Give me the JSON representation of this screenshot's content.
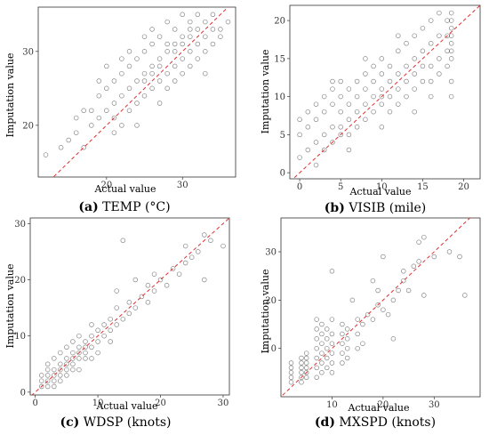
{
  "chart_data": [
    {
      "type": "scatter",
      "panel": "a",
      "caption_tag": "(a)",
      "caption_text": " TEMP (°C)",
      "xlabel": "Actual value",
      "ylabel": "Imputation value",
      "xlim": [
        11,
        37
      ],
      "ylim": [
        13,
        36
      ],
      "xticks": [
        20,
        30
      ],
      "yticks": [
        20,
        30
      ],
      "reference_line": "y = x",
      "points": [
        [
          12,
          16
        ],
        [
          14,
          17
        ],
        [
          15,
          18
        ],
        [
          16,
          19
        ],
        [
          17,
          17
        ],
        [
          18,
          20
        ],
        [
          18,
          22
        ],
        [
          19,
          21
        ],
        [
          19,
          24
        ],
        [
          20,
          22
        ],
        [
          20,
          25
        ],
        [
          21,
          21
        ],
        [
          21,
          23
        ],
        [
          21,
          26
        ],
        [
          22,
          24
        ],
        [
          22,
          27
        ],
        [
          22,
          20
        ],
        [
          23,
          25
        ],
        [
          23,
          28
        ],
        [
          23,
          22
        ],
        [
          24,
          26
        ],
        [
          24,
          23
        ],
        [
          24,
          29
        ],
        [
          25,
          27
        ],
        [
          25,
          24
        ],
        [
          25,
          30
        ],
        [
          25,
          26
        ],
        [
          26,
          28
        ],
        [
          26,
          25
        ],
        [
          26,
          31
        ],
        [
          26,
          27
        ],
        [
          27,
          29
        ],
        [
          27,
          26
        ],
        [
          27,
          32
        ],
        [
          27,
          28
        ],
        [
          28,
          30
        ],
        [
          28,
          27
        ],
        [
          28,
          25
        ],
        [
          28,
          31
        ],
        [
          29,
          31
        ],
        [
          29,
          28
        ],
        [
          29,
          33
        ],
        [
          29,
          30
        ],
        [
          30,
          32
        ],
        [
          30,
          29
        ],
        [
          30,
          27
        ],
        [
          30,
          31
        ],
        [
          31,
          33
        ],
        [
          31,
          30
        ],
        [
          31,
          34
        ],
        [
          31,
          32
        ],
        [
          32,
          31
        ],
        [
          32,
          33
        ],
        [
          32,
          35
        ],
        [
          32,
          29
        ],
        [
          33,
          32
        ],
        [
          33,
          34
        ],
        [
          33,
          30
        ],
        [
          34,
          33
        ],
        [
          34,
          31
        ],
        [
          34,
          35
        ],
        [
          35,
          33
        ],
        [
          35,
          32
        ],
        [
          36,
          34
        ],
        [
          22,
          29
        ],
        [
          20,
          28
        ],
        [
          24,
          20
        ],
        [
          26,
          33
        ],
        [
          29,
          26
        ],
        [
          31,
          28
        ],
        [
          33,
          27
        ],
        [
          19,
          26
        ],
        [
          27,
          23
        ],
        [
          23,
          30
        ],
        [
          25,
          32
        ],
        [
          28,
          34
        ],
        [
          30,
          35
        ],
        [
          21,
          19
        ],
        [
          17,
          22
        ],
        [
          16,
          21
        ]
      ]
    },
    {
      "type": "scatter",
      "panel": "b",
      "caption_tag": "(b)",
      "caption_text": " VISIB (mile)",
      "xlabel": "Actual value",
      "ylabel": "Imputation value",
      "xlim": [
        -1.2,
        22
      ],
      "ylim": [
        -0.8,
        22
      ],
      "xticks": [
        0,
        5,
        10,
        15,
        20
      ],
      "yticks": [
        0,
        5,
        10,
        15,
        20
      ],
      "reference_line": "y = x",
      "points": [
        [
          0,
          2
        ],
        [
          0,
          5
        ],
        [
          0,
          7
        ],
        [
          1,
          3
        ],
        [
          1,
          6
        ],
        [
          1,
          8
        ],
        [
          2,
          4
        ],
        [
          2,
          7
        ],
        [
          2,
          9
        ],
        [
          3,
          3
        ],
        [
          3,
          5
        ],
        [
          3,
          8
        ],
        [
          3,
          10
        ],
        [
          4,
          4
        ],
        [
          4,
          6
        ],
        [
          4,
          9
        ],
        [
          4,
          11
        ],
        [
          5,
          5
        ],
        [
          5,
          6
        ],
        [
          5,
          8
        ],
        [
          5,
          10
        ],
        [
          5,
          12
        ],
        [
          6,
          5
        ],
        [
          6,
          7
        ],
        [
          6,
          9
        ],
        [
          6,
          11
        ],
        [
          7,
          6
        ],
        [
          7,
          8
        ],
        [
          7,
          10
        ],
        [
          7,
          12
        ],
        [
          8,
          7
        ],
        [
          8,
          9
        ],
        [
          8,
          11
        ],
        [
          8,
          13
        ],
        [
          9,
          8
        ],
        [
          9,
          10
        ],
        [
          9,
          12
        ],
        [
          9,
          14
        ],
        [
          10,
          9
        ],
        [
          10,
          10
        ],
        [
          10,
          11
        ],
        [
          10,
          13
        ],
        [
          10,
          15
        ],
        [
          11,
          8
        ],
        [
          11,
          10
        ],
        [
          11,
          12
        ],
        [
          11,
          14
        ],
        [
          12,
          9
        ],
        [
          12,
          11
        ],
        [
          12,
          13
        ],
        [
          12,
          16
        ],
        [
          13,
          10
        ],
        [
          13,
          12
        ],
        [
          13,
          14
        ],
        [
          13,
          17
        ],
        [
          14,
          11
        ],
        [
          14,
          13
        ],
        [
          14,
          15
        ],
        [
          14,
          18
        ],
        [
          15,
          12
        ],
        [
          15,
          14
        ],
        [
          15,
          16
        ],
        [
          15,
          19
        ],
        [
          16,
          12
        ],
        [
          16,
          14
        ],
        [
          16,
          17
        ],
        [
          16,
          20
        ],
        [
          17,
          13
        ],
        [
          17,
          15
        ],
        [
          17,
          18
        ],
        [
          17,
          21
        ],
        [
          18,
          14
        ],
        [
          18,
          16
        ],
        [
          18,
          18
        ],
        [
          18,
          20
        ],
        [
          18.5,
          16
        ],
        [
          18.5,
          17
        ],
        [
          18.5,
          18
        ],
        [
          18.5,
          19
        ],
        [
          18.5,
          20
        ],
        [
          18.5,
          21
        ],
        [
          18.5,
          15
        ],
        [
          18.5,
          12
        ],
        [
          18.5,
          10
        ],
        [
          2,
          1
        ],
        [
          6,
          3
        ],
        [
          10,
          6
        ],
        [
          14,
          8
        ],
        [
          16,
          10
        ],
        [
          4,
          12
        ],
        [
          8,
          15
        ],
        [
          12,
          18
        ]
      ]
    },
    {
      "type": "scatter",
      "panel": "c",
      "caption_tag": "(c)",
      "caption_text": " WDSP (knots)",
      "xlabel": "Actual value",
      "ylabel": "Imputation value",
      "xlim": [
        -0.8,
        31
      ],
      "ylim": [
        -0.5,
        31
      ],
      "xticks": [
        0,
        10,
        20,
        30
      ],
      "yticks": [
        0,
        10,
        20,
        30
      ],
      "reference_line": "y = x",
      "points": [
        [
          1,
          1
        ],
        [
          1,
          2
        ],
        [
          2,
          1
        ],
        [
          2,
          2
        ],
        [
          2,
          3
        ],
        [
          3,
          2
        ],
        [
          3,
          3
        ],
        [
          3,
          4
        ],
        [
          4,
          3
        ],
        [
          4,
          4
        ],
        [
          4,
          5
        ],
        [
          5,
          4
        ],
        [
          5,
          5
        ],
        [
          5,
          6
        ],
        [
          6,
          5
        ],
        [
          6,
          6
        ],
        [
          6,
          7
        ],
        [
          7,
          6
        ],
        [
          7,
          7
        ],
        [
          7,
          8
        ],
        [
          8,
          7
        ],
        [
          8,
          8
        ],
        [
          8,
          9
        ],
        [
          9,
          8
        ],
        [
          9,
          10
        ],
        [
          10,
          9
        ],
        [
          10,
          11
        ],
        [
          11,
          10
        ],
        [
          11,
          12
        ],
        [
          12,
          11
        ],
        [
          12,
          13
        ],
        [
          13,
          12
        ],
        [
          13,
          15
        ],
        [
          14,
          13
        ],
        [
          15,
          14
        ],
        [
          15,
          16
        ],
        [
          16,
          15
        ],
        [
          17,
          17
        ],
        [
          18,
          16
        ],
        [
          18,
          19
        ],
        [
          19,
          18
        ],
        [
          20,
          20
        ],
        [
          21,
          19
        ],
        [
          22,
          22
        ],
        [
          23,
          21
        ],
        [
          24,
          23
        ],
        [
          25,
          24
        ],
        [
          26,
          25
        ],
        [
          27,
          28
        ],
        [
          28,
          27
        ],
        [
          30,
          26
        ],
        [
          14,
          27
        ],
        [
          3,
          6
        ],
        [
          4,
          7
        ],
        [
          5,
          8
        ],
        [
          2,
          4
        ],
        [
          6,
          9
        ],
        [
          7,
          10
        ],
        [
          5,
          3
        ],
        [
          6,
          4
        ],
        [
          8,
          6
        ],
        [
          9,
          12
        ],
        [
          10,
          7
        ],
        [
          12,
          9
        ],
        [
          13,
          18
        ],
        [
          16,
          20
        ],
        [
          19,
          21
        ],
        [
          24,
          26
        ],
        [
          27,
          20
        ],
        [
          3,
          1
        ],
        [
          4,
          2
        ],
        [
          1,
          3
        ],
        [
          2,
          5
        ],
        [
          7,
          4
        ],
        [
          9,
          6
        ]
      ]
    },
    {
      "type": "scatter",
      "panel": "d",
      "caption_tag": "(d)",
      "caption_text": " MXSPD (knots)",
      "xlabel": "Actual value",
      "ylabel": "Imputation value",
      "xlim": [
        0,
        39
      ],
      "ylim": [
        0,
        37
      ],
      "xticks": [
        10,
        20,
        30
      ],
      "yticks": [
        10,
        20,
        30
      ],
      "reference_line": "y = x",
      "points": [
        [
          2,
          3
        ],
        [
          2,
          4
        ],
        [
          2,
          5
        ],
        [
          2,
          6
        ],
        [
          2,
          7
        ],
        [
          4,
          3
        ],
        [
          4,
          4
        ],
        [
          4,
          5
        ],
        [
          4,
          6
        ],
        [
          4,
          7
        ],
        [
          4,
          8
        ],
        [
          5,
          4
        ],
        [
          5,
          5
        ],
        [
          5,
          6
        ],
        [
          5,
          7
        ],
        [
          5,
          8
        ],
        [
          5,
          9
        ],
        [
          7,
          4
        ],
        [
          7,
          6
        ],
        [
          7,
          8
        ],
        [
          7,
          10
        ],
        [
          7,
          12
        ],
        [
          7,
          14
        ],
        [
          7,
          16
        ],
        [
          8,
          5
        ],
        [
          8,
          7
        ],
        [
          8,
          9
        ],
        [
          8,
          11
        ],
        [
          8,
          13
        ],
        [
          8,
          15
        ],
        [
          9,
          6
        ],
        [
          9,
          8
        ],
        [
          9,
          10
        ],
        [
          9,
          12
        ],
        [
          9,
          14
        ],
        [
          10,
          5
        ],
        [
          10,
          7
        ],
        [
          10,
          9
        ],
        [
          10,
          11
        ],
        [
          10,
          13
        ],
        [
          10,
          16
        ],
        [
          10,
          26
        ],
        [
          12,
          7
        ],
        [
          12,
          9
        ],
        [
          12,
          11
        ],
        [
          12,
          13
        ],
        [
          12,
          15
        ],
        [
          13,
          8
        ],
        [
          13,
          10
        ],
        [
          13,
          12
        ],
        [
          13,
          14
        ],
        [
          15,
          10
        ],
        [
          15,
          13
        ],
        [
          15,
          16
        ],
        [
          16,
          15
        ],
        [
          17,
          17
        ],
        [
          18,
          16
        ],
        [
          19,
          19
        ],
        [
          19,
          22
        ],
        [
          20,
          18
        ],
        [
          20,
          29
        ],
        [
          22,
          20
        ],
        [
          23,
          22
        ],
        [
          24,
          24
        ],
        [
          25,
          22
        ],
        [
          26,
          27
        ],
        [
          27,
          28
        ],
        [
          27,
          32
        ],
        [
          28,
          21
        ],
        [
          28,
          33
        ],
        [
          30,
          29
        ],
        [
          33,
          30
        ],
        [
          35,
          29
        ],
        [
          36,
          21
        ],
        [
          22,
          12
        ],
        [
          18,
          24
        ],
        [
          24,
          26
        ],
        [
          16,
          11
        ],
        [
          14,
          20
        ],
        [
          21,
          17
        ]
      ]
    }
  ]
}
